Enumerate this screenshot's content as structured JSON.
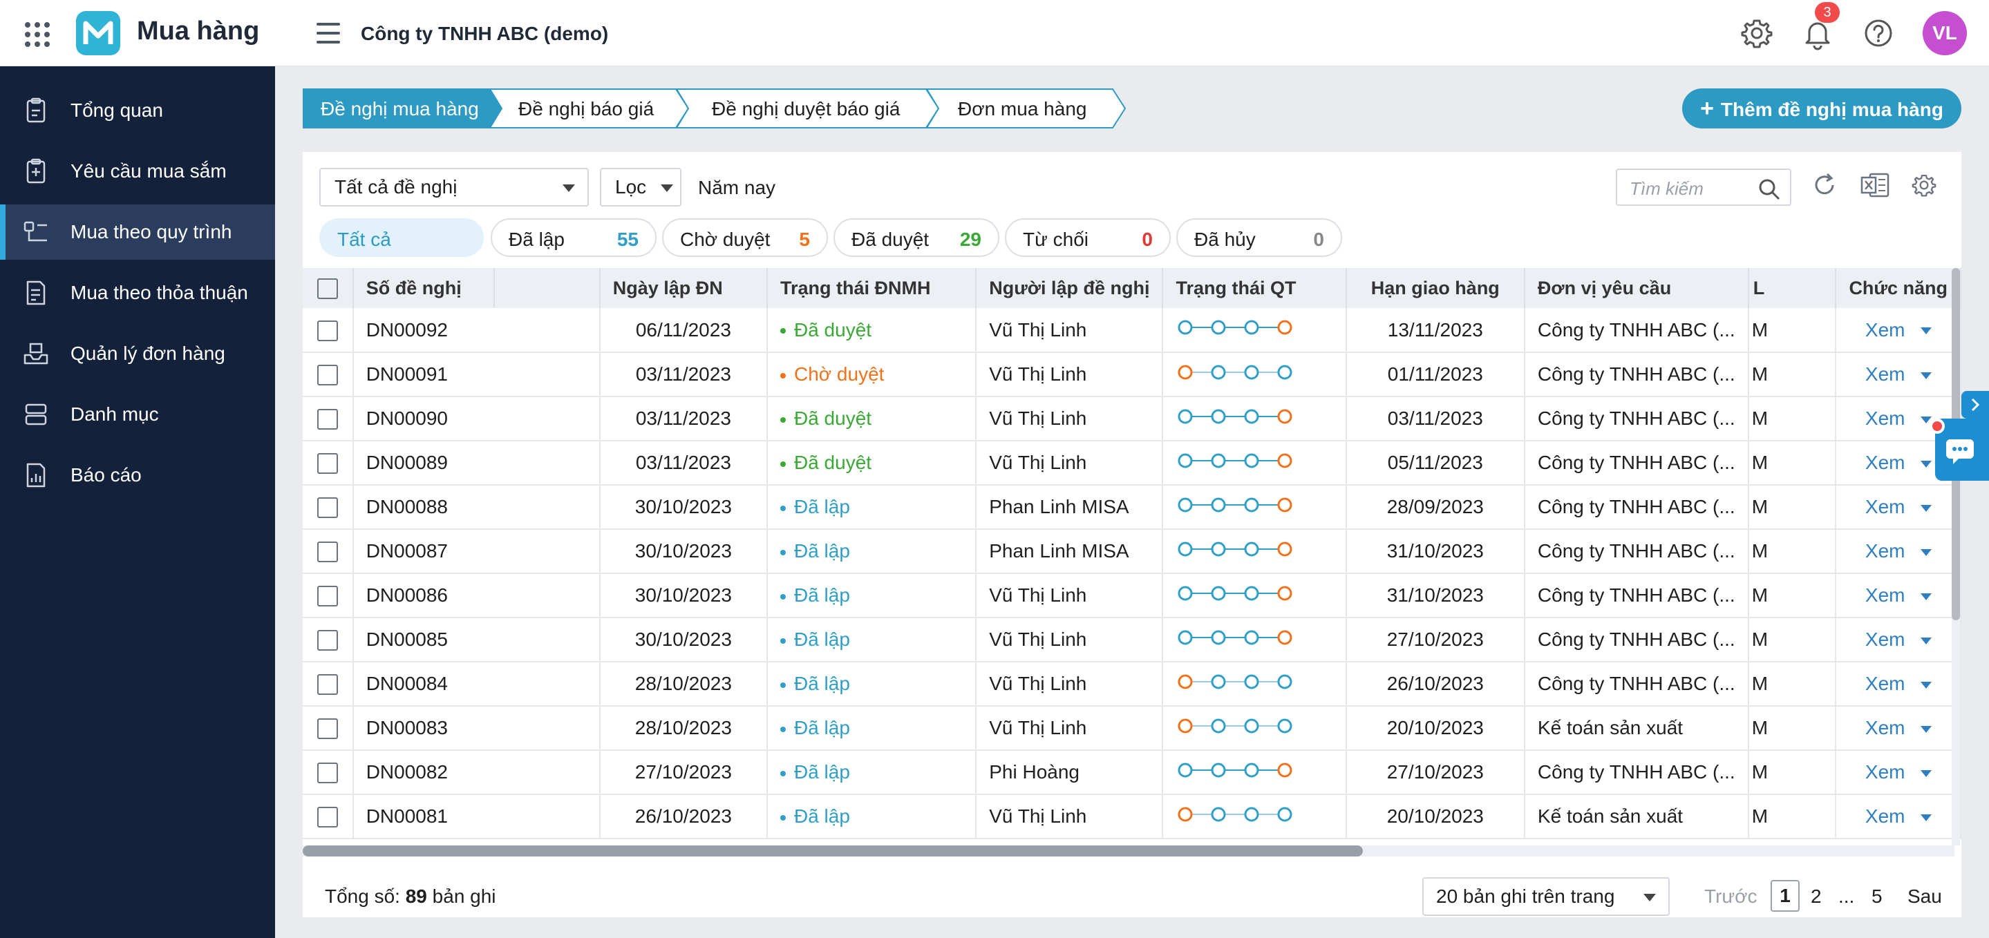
{
  "app": {
    "title": "Mua hàng",
    "company": "Công ty TNHH ABC (demo)",
    "notification_count": "3",
    "avatar_initials": "VL"
  },
  "sidebar": {
    "items": [
      {
        "label": "Tổng quan",
        "icon": "clipboard-icon"
      },
      {
        "label": "Yêu cầu mua sắm",
        "icon": "request-icon"
      },
      {
        "label": "Mua theo quy trình",
        "icon": "process-icon",
        "active": true
      },
      {
        "label": "Mua theo thỏa thuận",
        "icon": "agreement-icon"
      },
      {
        "label": "Quản lý đơn hàng",
        "icon": "box-icon"
      },
      {
        "label": "Danh mục",
        "icon": "catalog-icon"
      },
      {
        "label": "Báo cáo",
        "icon": "report-icon"
      }
    ]
  },
  "steps": [
    "Đề nghị mua hàng",
    "Đề nghị báo giá",
    "Đề nghị duyệt báo giá",
    "Đơn mua hàng"
  ],
  "add_button": "Thêm đề nghị mua hàng",
  "filters": {
    "type_select": "Tất cả đề nghị",
    "filter_select": "Lọc",
    "period": "Năm nay",
    "search_placeholder": "Tìm kiếm"
  },
  "status_pills": [
    {
      "label": "Tất cả",
      "count": ""
    },
    {
      "label": "Đã lập",
      "count": "55"
    },
    {
      "label": "Chờ duyệt",
      "count": "5"
    },
    {
      "label": "Đã duyệt",
      "count": "29"
    },
    {
      "label": "Từ chối",
      "count": "0"
    },
    {
      "label": "Đã hủy",
      "count": "0"
    }
  ],
  "colors": {
    "primary": "#2d9ac4",
    "approved": "#3aa935",
    "pending": "#f2721c",
    "created": "#2f9fc8",
    "rejected": "#e53935",
    "sidebar": "#13213a"
  },
  "table": {
    "columns": [
      "Số đề nghị",
      "Ngày lập ĐN",
      "Trạng thái ĐNMH",
      "Người lập đề nghị",
      "Trạng thái QT",
      "Hạn giao hàng",
      "Đơn vị yêu cầu",
      "L",
      "Chức năng"
    ],
    "rows": [
      {
        "no": "DN00092",
        "date": "06/11/2023",
        "status": "Đã duyệt",
        "kind": "approved",
        "creator": "Vũ Thị Linh",
        "flow": [
          1,
          1,
          1,
          1
        ],
        "due": "13/11/2023",
        "unit": "Công ty TNHH ABC (...",
        "l": "M",
        "action": "Xem"
      },
      {
        "no": "DN00091",
        "date": "03/11/2023",
        "status": "Chờ duyệt",
        "kind": "pending",
        "creator": "Vũ Thị Linh",
        "flow": [
          1,
          0,
          0,
          0
        ],
        "due": "01/11/2023",
        "unit": "Công ty TNHH ABC (...",
        "l": "M",
        "action": "Xem"
      },
      {
        "no": "DN00090",
        "date": "03/11/2023",
        "status": "Đã duyệt",
        "kind": "approved",
        "creator": "Vũ Thị Linh",
        "flow": [
          1,
          1,
          1,
          1
        ],
        "due": "03/11/2023",
        "unit": "Công ty TNHH ABC (...",
        "l": "M",
        "action": "Xem"
      },
      {
        "no": "DN00089",
        "date": "03/11/2023",
        "status": "Đã duyệt",
        "kind": "approved",
        "creator": "Vũ Thị Linh",
        "flow": [
          1,
          1,
          1,
          1
        ],
        "due": "05/11/2023",
        "unit": "Công ty TNHH ABC (...",
        "l": "M",
        "action": "Xem"
      },
      {
        "no": "DN00088",
        "date": "30/10/2023",
        "status": "Đã lập",
        "kind": "created",
        "creator": "Phan Linh MISA",
        "flow": [
          1,
          1,
          1,
          1
        ],
        "due": "28/09/2023",
        "unit": "Công ty TNHH ABC (...",
        "l": "M",
        "action": "Xem"
      },
      {
        "no": "DN00087",
        "date": "30/10/2023",
        "status": "Đã lập",
        "kind": "created",
        "creator": "Phan Linh MISA",
        "flow": [
          1,
          1,
          1,
          1
        ],
        "due": "31/10/2023",
        "unit": "Công ty TNHH ABC (...",
        "l": "M",
        "action": "Xem"
      },
      {
        "no": "DN00086",
        "date": "30/10/2023",
        "status": "Đã lập",
        "kind": "created",
        "creator": "Vũ Thị Linh",
        "flow": [
          1,
          1,
          1,
          1
        ],
        "due": "31/10/2023",
        "unit": "Công ty TNHH ABC (...",
        "l": "M",
        "action": "Xem"
      },
      {
        "no": "DN00085",
        "date": "30/10/2023",
        "status": "Đã lập",
        "kind": "created",
        "creator": "Vũ Thị Linh",
        "flow": [
          1,
          1,
          1,
          1
        ],
        "due": "27/10/2023",
        "unit": "Công ty TNHH ABC (...",
        "l": "M",
        "action": "Xem"
      },
      {
        "no": "DN00084",
        "date": "28/10/2023",
        "status": "Đã lập",
        "kind": "created",
        "creator": "Vũ Thị Linh",
        "flow": [
          1,
          0,
          0,
          0
        ],
        "due": "26/10/2023",
        "unit": "Công ty TNHH ABC (...",
        "l": "M",
        "action": "Xem"
      },
      {
        "no": "DN00083",
        "date": "28/10/2023",
        "status": "Đã lập",
        "kind": "created",
        "creator": "Vũ Thị Linh",
        "flow": [
          1,
          0,
          0,
          0
        ],
        "due": "20/10/2023",
        "unit": "Kế toán sản xuất",
        "l": "M",
        "action": "Xem"
      },
      {
        "no": "DN00082",
        "date": "27/10/2023",
        "status": "Đã lập",
        "kind": "created",
        "creator": "Phi Hoàng",
        "flow": [
          1,
          1,
          1,
          1
        ],
        "due": "27/10/2023",
        "unit": "Công ty TNHH ABC (...",
        "l": "M",
        "action": "Xem"
      },
      {
        "no": "DN00081",
        "date": "26/10/2023",
        "status": "Đã lập",
        "kind": "created",
        "creator": "Vũ Thị Linh",
        "flow": [
          1,
          0,
          0,
          0
        ],
        "due": "20/10/2023",
        "unit": "Kế toán sản xuất",
        "l": "M",
        "action": "Xem"
      }
    ]
  },
  "footer": {
    "total_prefix": "Tổng số: ",
    "total": "89",
    "total_suffix": " bản ghi",
    "page_size": "20 bản ghi trên trang",
    "prev": "Trước",
    "pages": [
      "1",
      "2",
      "...",
      "5"
    ],
    "next": "Sau"
  }
}
